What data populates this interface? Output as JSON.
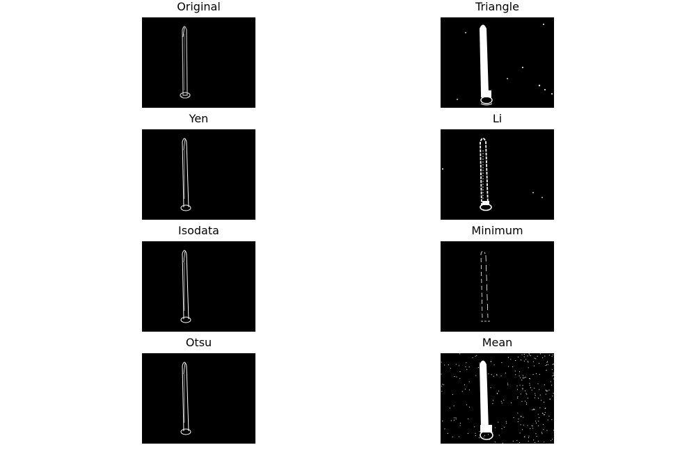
{
  "figure": {
    "panels": [
      {
        "id": "original",
        "title": "Original",
        "style": "grayscale-edges"
      },
      {
        "id": "triangle",
        "title": "Triangle",
        "style": "filled-noisy"
      },
      {
        "id": "yen",
        "title": "Yen",
        "style": "thin-outline"
      },
      {
        "id": "li",
        "title": "Li",
        "style": "dotted-outline"
      },
      {
        "id": "isodata",
        "title": "Isodata",
        "style": "thin-outline"
      },
      {
        "id": "minimum",
        "title": "Minimum",
        "style": "sparse-outline"
      },
      {
        "id": "otsu",
        "title": "Otsu",
        "style": "thin-outline"
      },
      {
        "id": "mean",
        "title": "Mean",
        "style": "filled-heavy-noise"
      }
    ],
    "colors": {
      "background": "#000000",
      "foreground": "#ffffff",
      "original_edge": "#c8c8c8"
    }
  }
}
